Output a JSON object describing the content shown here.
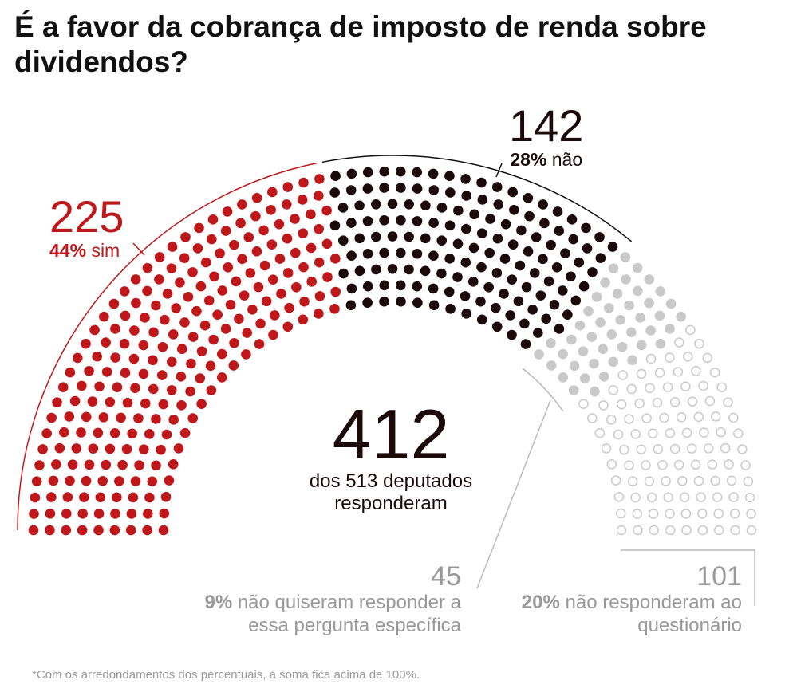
{
  "chart_data": {
    "type": "parliament",
    "title": "É a favor da cobrança de imposto de renda sobre dividendos?",
    "series": [
      {
        "name": "sim",
        "value": 225,
        "percent_label": "44%",
        "color": "#c0171b",
        "hollow": false
      },
      {
        "name": "não",
        "value": 142,
        "percent_label": "28%",
        "color": "#1c0a0a",
        "hollow": false
      },
      {
        "name": "não quiseram responder a essa pergunta específica",
        "value": 45,
        "percent_label": "9%",
        "color": "#c9c9c9",
        "hollow": false
      },
      {
        "name": "não responderam ao questionário",
        "value": 101,
        "percent_label": "20%",
        "color": "#c9c9c9",
        "hollow": true
      }
    ],
    "center_value": 412,
    "center_label": "dos 513 deputados responderam",
    "footnote": "*Com os arredondamentos dos percentuais, a soma fica acima de 100%."
  }
}
